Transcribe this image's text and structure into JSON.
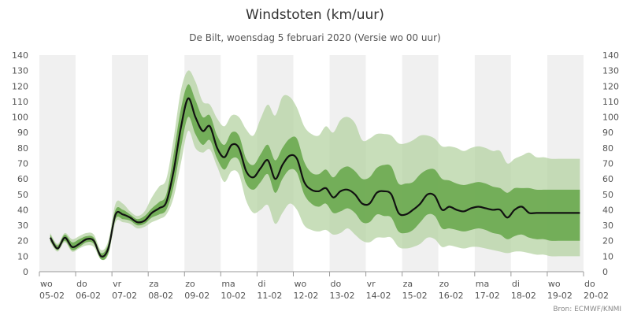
{
  "chart_data": {
    "type": "area",
    "title": "Windstoten (km/uur)",
    "subtitle": "De Bilt, woensdag 5 februari 2020 (Versie wo 00 uur)",
    "credit": "Bron: ECMWF/KNMI",
    "ylim": [
      0,
      140
    ],
    "yticks": [
      0,
      10,
      20,
      30,
      40,
      50,
      60,
      70,
      80,
      90,
      100,
      110,
      120,
      130,
      140
    ],
    "xlim": [
      0,
      15
    ],
    "grid": true,
    "legend": "none",
    "x_ticks": [
      {
        "day": "wo",
        "date": "05-02"
      },
      {
        "day": "do",
        "date": "06-02"
      },
      {
        "day": "vr",
        "date": "07-02"
      },
      {
        "day": "za",
        "date": "08-02"
      },
      {
        "day": "zo",
        "date": "09-02"
      },
      {
        "day": "ma",
        "date": "10-02"
      },
      {
        "day": "di",
        "date": "11-02"
      },
      {
        "day": "wo",
        "date": "12-02"
      },
      {
        "day": "do",
        "date": "13-02"
      },
      {
        "day": "vr",
        "date": "14-02"
      },
      {
        "day": "za",
        "date": "15-02"
      },
      {
        "day": "zo",
        "date": "16-02"
      },
      {
        "day": "ma",
        "date": "17-02"
      },
      {
        "day": "di",
        "date": "18-02"
      },
      {
        "day": "wo",
        "date": "19-02"
      },
      {
        "day": "do",
        "date": "20-02"
      }
    ],
    "x": [
      0.3,
      0.5,
      0.7,
      0.9,
      1.1,
      1.3,
      1.5,
      1.7,
      1.9,
      2.1,
      2.3,
      2.5,
      2.7,
      2.9,
      3.1,
      3.3,
      3.5,
      3.7,
      3.9,
      4.1,
      4.3,
      4.5,
      4.7,
      4.9,
      5.1,
      5.3,
      5.5,
      5.7,
      5.9,
      6.1,
      6.3,
      6.5,
      6.7,
      6.9,
      7.1,
      7.3,
      7.5,
      7.7,
      7.9,
      8.1,
      8.3,
      8.5,
      8.7,
      8.9,
      9.1,
      9.3,
      9.5,
      9.7,
      9.9,
      10.1,
      10.3,
      10.5,
      10.7,
      10.9,
      11.1,
      11.3,
      11.5,
      11.7,
      11.9,
      12.1,
      12.3,
      12.5,
      12.7,
      12.9,
      13.1,
      13.3,
      13.5,
      13.7,
      13.9,
      14.1,
      14.3,
      14.5,
      14.7,
      14.9
    ],
    "series": [
      {
        "role": "median",
        "color": "#111111",
        "values": [
          22,
          15,
          22,
          16,
          18,
          21,
          20,
          10,
          15,
          37,
          37,
          35,
          32,
          33,
          38,
          41,
          45,
          65,
          93,
          112,
          100,
          91,
          94,
          80,
          74,
          82,
          80,
          65,
          61,
          67,
          72,
          60,
          69,
          75,
          73,
          58,
          53,
          52,
          54,
          48,
          52,
          53,
          50,
          44,
          44,
          51,
          52,
          50,
          38,
          37,
          40,
          44,
          50,
          49,
          40,
          42,
          40,
          39,
          41,
          42,
          41,
          40,
          40,
          35,
          40,
          42,
          38,
          38,
          38,
          38,
          38,
          38,
          38,
          38
        ]
      },
      {
        "role": "band-inner",
        "color": "#6aa84f",
        "lower": [
          20,
          14,
          20,
          14,
          16,
          19,
          18,
          8,
          12,
          34,
          34,
          33,
          30,
          31,
          35,
          37,
          40,
          55,
          80,
          100,
          89,
          82,
          85,
          73,
          66,
          73,
          72,
          57,
          53,
          58,
          63,
          51,
          60,
          66,
          64,
          50,
          44,
          42,
          44,
          38,
          39,
          41,
          38,
          32,
          32,
          37,
          36,
          35,
          26,
          25,
          27,
          32,
          37,
          36,
          28,
          28,
          27,
          26,
          27,
          28,
          27,
          25,
          24,
          21,
          23,
          24,
          22,
          21,
          21,
          20,
          20,
          20,
          20,
          20
        ],
        "upper": [
          24,
          17,
          24,
          19,
          21,
          23,
          22,
          12,
          18,
          40,
          40,
          37,
          34,
          36,
          41,
          45,
          50,
          76,
          105,
          121,
          111,
          100,
          101,
          88,
          82,
          90,
          88,
          73,
          69,
          76,
          82,
          72,
          80,
          86,
          86,
          71,
          64,
          63,
          66,
          61,
          66,
          68,
          65,
          60,
          61,
          67,
          69,
          68,
          57,
          57,
          58,
          63,
          66,
          66,
          60,
          59,
          57,
          56,
          57,
          58,
          57,
          55,
          54,
          51,
          54,
          54,
          54,
          53,
          53,
          53,
          53,
          53,
          53,
          53
        ]
      },
      {
        "role": "band-outer",
        "color": "#b5d3a3",
        "lower": [
          19,
          13,
          19,
          13,
          15,
          17,
          16,
          8,
          11,
          32,
          32,
          31,
          28,
          29,
          32,
          34,
          37,
          48,
          70,
          91,
          80,
          77,
          79,
          68,
          58,
          65,
          63,
          46,
          38,
          40,
          43,
          31,
          38,
          44,
          40,
          30,
          27,
          26,
          27,
          24,
          25,
          28,
          24,
          20,
          19,
          22,
          22,
          22,
          16,
          15,
          16,
          18,
          22,
          21,
          16,
          17,
          16,
          15,
          16,
          16,
          15,
          14,
          13,
          12,
          13,
          13,
          12,
          11,
          11,
          10,
          10,
          10,
          10,
          10
        ],
        "upper": [
          25,
          18,
          25,
          21,
          23,
          25,
          24,
          14,
          20,
          44,
          44,
          39,
          36,
          39,
          48,
          55,
          60,
          86,
          117,
          130,
          123,
          110,
          108,
          99,
          94,
          101,
          100,
          92,
          88,
          99,
          108,
          101,
          113,
          113,
          106,
          94,
          89,
          88,
          94,
          90,
          98,
          100,
          96,
          85,
          86,
          89,
          89,
          88,
          83,
          83,
          85,
          88,
          88,
          86,
          81,
          81,
          80,
          78,
          80,
          81,
          80,
          78,
          78,
          70,
          73,
          75,
          77,
          74,
          74,
          73,
          73,
          73,
          73,
          73
        ]
      }
    ]
  }
}
